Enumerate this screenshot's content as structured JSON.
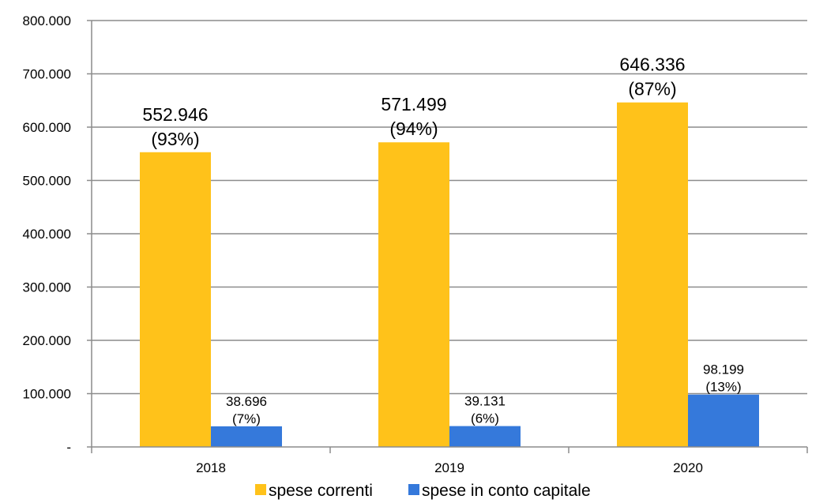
{
  "chart_data": {
    "type": "bar",
    "categories": [
      "2018",
      "2019",
      "2020"
    ],
    "series": [
      {
        "name": "spese correnti",
        "color": "#FFC21A",
        "values": [
          552946,
          571499,
          646336
        ],
        "value_labels": [
          "552.946",
          "571.499",
          "646.336"
        ],
        "pct_labels": [
          "(93%)",
          "(94%)",
          "(87%)"
        ]
      },
      {
        "name": "spese in conto capitale",
        "color": "#3579DB",
        "values": [
          38696,
          39131,
          98199
        ],
        "value_labels": [
          "38.696",
          "39.131",
          "98.199"
        ],
        "pct_labels": [
          "(7%)",
          "(6%)",
          "(13%)"
        ]
      }
    ],
    "ylim": [
      0,
      800000
    ],
    "yticks": [
      0,
      100000,
      200000,
      300000,
      400000,
      500000,
      600000,
      700000,
      800000
    ],
    "ytick_labels": [
      "-",
      "100.000",
      "200.000",
      "300.000",
      "400.000",
      "500.000",
      "600.000",
      "700.000",
      "800.000"
    ],
    "grid": true,
    "legend_position": "bottom"
  }
}
